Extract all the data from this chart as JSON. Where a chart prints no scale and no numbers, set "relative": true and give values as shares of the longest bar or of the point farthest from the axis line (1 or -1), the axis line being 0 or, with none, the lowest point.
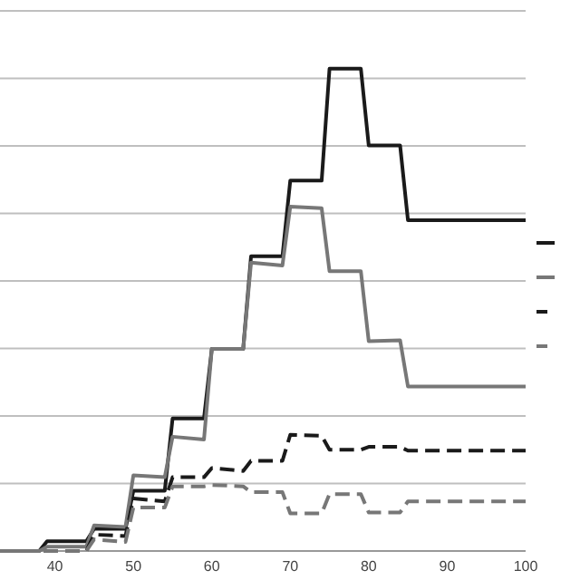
{
  "chart_data": {
    "type": "line",
    "relative": true,
    "xlim": [
      33,
      100
    ],
    "xticks": [
      40,
      50,
      60,
      70,
      80,
      90,
      100
    ],
    "grid": "y",
    "tick_labels": "x",
    "series": [
      {
        "color": "#1a1a1a",
        "line_style": "solid",
        "x": [
          33,
          38,
          39,
          44,
          45,
          49,
          50,
          54,
          55,
          59,
          60,
          64,
          65,
          69,
          70,
          74,
          75,
          79,
          80,
          84,
          85,
          100
        ],
        "values": [
          0,
          0,
          0.02,
          0.02,
          0.046,
          0.046,
          0.125,
          0.125,
          0.275,
          0.275,
          0.419,
          0.419,
          0.611,
          0.611,
          0.768,
          0.768,
          1,
          1,
          0.841,
          0.841,
          0.686,
          0.686
        ]
      },
      {
        "color": "#777777",
        "line_style": "solid",
        "x": [
          33,
          38,
          39,
          44,
          45,
          49,
          50,
          54,
          55,
          59,
          60,
          64,
          65,
          69,
          70,
          74,
          75,
          79,
          80,
          84,
          85,
          100
        ],
        "values": [
          0,
          0,
          0.009,
          0.009,
          0.053,
          0.05,
          0.157,
          0.153,
          0.237,
          0.231,
          0.419,
          0.419,
          0.598,
          0.592,
          0.714,
          0.711,
          0.58,
          0.58,
          0.435,
          0.437,
          0.341,
          0.341
        ]
      },
      {
        "color": "#1a1a1a",
        "line_style": "dashed",
        "x": [
          33,
          44,
          45,
          49,
          50,
          54,
          55,
          59,
          60,
          64,
          65,
          69,
          70,
          74,
          75,
          79,
          80,
          84,
          85,
          100
        ],
        "values": [
          0,
          0,
          0.034,
          0.031,
          0.109,
          0.103,
          0.153,
          0.153,
          0.172,
          0.166,
          0.187,
          0.187,
          0.241,
          0.239,
          0.21,
          0.21,
          0.216,
          0.216,
          0.208,
          0.208
        ]
      },
      {
        "color": "#777777",
        "line_style": "dashed",
        "x": [
          33,
          44,
          45,
          49,
          50,
          54,
          55,
          59,
          60,
          64,
          65,
          69,
          70,
          74,
          75,
          79,
          80,
          84,
          85,
          100
        ],
        "values": [
          0,
          0,
          0.024,
          0.019,
          0.09,
          0.09,
          0.134,
          0.134,
          0.137,
          0.134,
          0.122,
          0.122,
          0.078,
          0.078,
          0.118,
          0.118,
          0.08,
          0.08,
          0.103,
          0.103
        ]
      }
    ]
  }
}
